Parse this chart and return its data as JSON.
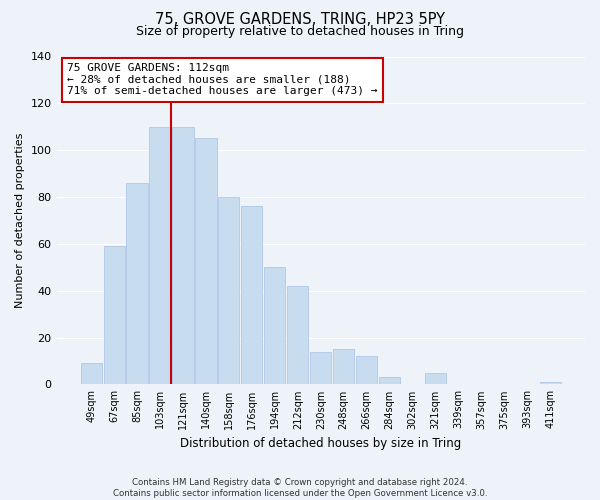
{
  "title": "75, GROVE GARDENS, TRING, HP23 5PY",
  "subtitle": "Size of property relative to detached houses in Tring",
  "xlabel": "Distribution of detached houses by size in Tring",
  "ylabel": "Number of detached properties",
  "categories": [
    "49sqm",
    "67sqm",
    "85sqm",
    "103sqm",
    "121sqm",
    "140sqm",
    "158sqm",
    "176sqm",
    "194sqm",
    "212sqm",
    "230sqm",
    "248sqm",
    "266sqm",
    "284sqm",
    "302sqm",
    "321sqm",
    "339sqm",
    "357sqm",
    "375sqm",
    "393sqm",
    "411sqm"
  ],
  "values": [
    9,
    59,
    86,
    110,
    110,
    105,
    80,
    76,
    50,
    42,
    14,
    15,
    12,
    3,
    0,
    5,
    0,
    0,
    0,
    0,
    1
  ],
  "bar_color": "#c8dcf0",
  "bar_edge_color": "#b0c8e8",
  "highlight_bar_index": 3,
  "highlight_line_color": "#cc0000",
  "ylim": [
    0,
    140
  ],
  "yticks": [
    0,
    20,
    40,
    60,
    80,
    100,
    120,
    140
  ],
  "annotation_text": "75 GROVE GARDENS: 112sqm\n← 28% of detached houses are smaller (188)\n71% of semi-detached houses are larger (473) →",
  "annotation_box_color": "#ffffff",
  "annotation_box_edge": "#cc0000",
  "footer_line1": "Contains HM Land Registry data © Crown copyright and database right 2024.",
  "footer_line2": "Contains public sector information licensed under the Open Government Licence v3.0.",
  "background_color": "#eef2f9",
  "plot_bg_color": "#eef2f9",
  "grid_color": "#ffffff"
}
